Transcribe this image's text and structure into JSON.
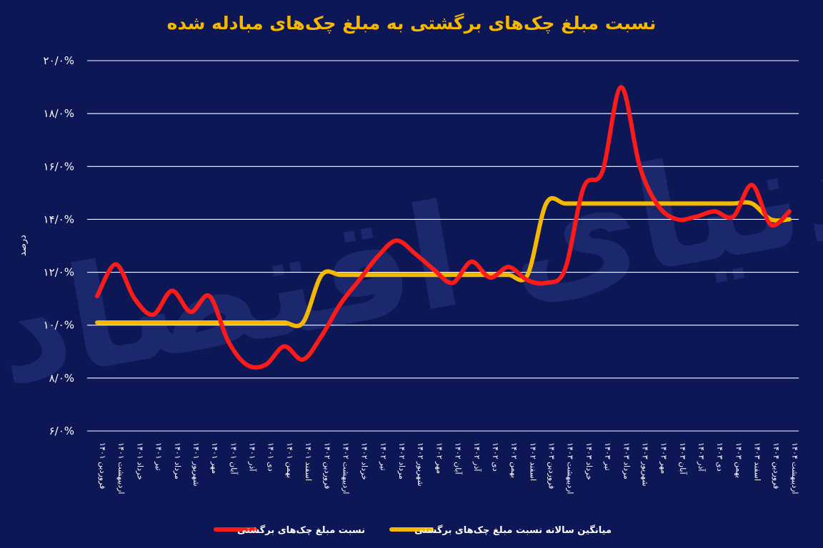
{
  "chart_data": {
    "type": "line",
    "title": "نسبت مبلغ چک‌های برگشتی به مبلغ چک‌های مبادله شده",
    "ylabel": "درصد",
    "xlabel": "",
    "ylim": [
      6,
      20
    ],
    "yticks": [
      6,
      8,
      10,
      12,
      14,
      16,
      18,
      20
    ],
    "ytick_labels": [
      "۶/۰%",
      "۸/۰%",
      "۱۰/۰%",
      "۱۲/۰%",
      "۱۴/۰%",
      "۱۶/۰%",
      "۱۸/۰%",
      "۲۰/۰%"
    ],
    "grid": true,
    "legend_position": "bottom",
    "watermark": "دنیای اقتصاد",
    "categories": [
      "فروردین ۱۴۰۱",
      "اردیبهشت ۱۴۰۱",
      "خرداد ۱۴۰۱",
      "تیر ۱۴۰۱",
      "مرداد ۱۴۰۱",
      "شهریور ۱۴۰۱",
      "مهر ۱۴۰۱",
      "آبان ۱۴۰۱",
      "آذر ۱۴۰۱",
      "دی ۱۴۰۱",
      "بهمن ۱۴۰۱",
      "اسفند ۱۴۰۱",
      "فروردین ۱۴۰۲",
      "اردیبهشت ۱۴۰۲",
      "خرداد ۱۴۰۲",
      "تیر ۱۴۰۲",
      "مرداد ۱۴۰۲",
      "شهریور ۱۴۰۲",
      "مهر ۱۴۰۲",
      "آبان ۱۴۰۲",
      "آذر ۱۴۰۲",
      "دی ۱۴۰۲",
      "بهمن ۱۴۰۲",
      "اسفند ۱۴۰۲",
      "فروردین ۱۴۰۳",
      "اردیبهشت ۱۴۰۳",
      "خرداد ۱۴۰۳",
      "تیر ۱۴۰۳",
      "مرداد ۱۴۰۳",
      "شهریور ۱۴۰۳",
      "مهر ۱۴۰۳",
      "آبان ۱۴۰۳",
      "آذر ۱۴۰۳",
      "دی ۱۴۰۳",
      "بهمن ۱۴۰۳",
      "اسفند ۱۴۰۳",
      "فروردین ۱۴۰۴",
      "اردیبهشت ۱۴۰۴"
    ],
    "series": [
      {
        "name": "نسبت مبلغ چک‌های برگشتی",
        "color": "#ff1a1a",
        "values": [
          11.1,
          12.3,
          11.0,
          10.4,
          11.3,
          10.5,
          11.1,
          9.4,
          8.5,
          8.5,
          9.2,
          8.7,
          9.6,
          10.8,
          11.7,
          12.6,
          13.2,
          12.7,
          12.1,
          11.6,
          12.4,
          11.8,
          12.2,
          11.7,
          11.6,
          12.1,
          15.2,
          15.8,
          19.0,
          16.0,
          14.5,
          14.0,
          14.1,
          14.3,
          14.1,
          15.3,
          13.8,
          14.3
        ]
      },
      {
        "name": "میانگین سالانه نسبت مبلغ چک‌های برگشتی",
        "color": "#f5b800",
        "values": [
          10.1,
          10.1,
          10.1,
          10.1,
          10.1,
          10.1,
          10.1,
          10.1,
          10.1,
          10.1,
          10.1,
          10.1,
          11.9,
          11.9,
          11.9,
          11.9,
          11.9,
          11.9,
          11.9,
          11.9,
          11.9,
          11.9,
          11.9,
          11.9,
          14.6,
          14.6,
          14.6,
          14.6,
          14.6,
          14.6,
          14.6,
          14.6,
          14.6,
          14.6,
          14.6,
          14.6,
          14.0,
          14.0
        ]
      }
    ]
  }
}
